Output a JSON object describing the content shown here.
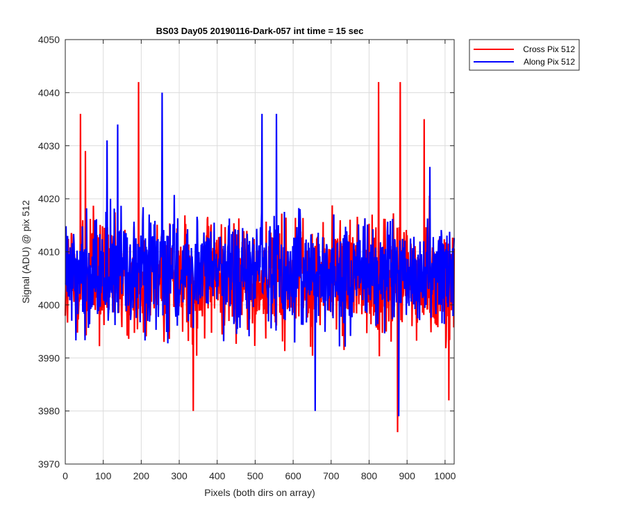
{
  "chart_data": {
    "type": "line",
    "title": "BS03 Day05 20190116-Dark-057 int time = 15 sec",
    "xlabel": "Pixels (both dirs on array)",
    "ylabel": "Signal (ADU) @ pix 512",
    "xlim": [
      0,
      1024
    ],
    "ylim": [
      3970,
      4050
    ],
    "xticks": [
      0,
      100,
      200,
      300,
      400,
      500,
      600,
      700,
      800,
      900,
      1000
    ],
    "yticks": [
      3970,
      3980,
      3990,
      4000,
      4010,
      4020,
      4030,
      4040,
      4050
    ],
    "grid": true,
    "legend_position": "outside-top-right",
    "series": [
      {
        "name": "Cross Pix 512",
        "color": "#ff0000",
        "baseline": 4005,
        "noise_range": [
          3990,
          4020
        ],
        "peaks": [
          {
            "x": 40,
            "y": 4036
          },
          {
            "x": 53,
            "y": 4029
          },
          {
            "x": 193,
            "y": 4042
          },
          {
            "x": 337,
            "y": 3980
          },
          {
            "x": 825,
            "y": 4042
          },
          {
            "x": 875,
            "y": 3976
          },
          {
            "x": 882,
            "y": 4042
          },
          {
            "x": 945,
            "y": 4035
          },
          {
            "x": 1010,
            "y": 3982
          }
        ]
      },
      {
        "name": "Along Pix 512",
        "color": "#0000ff",
        "baseline": 4006,
        "noise_range": [
          3992,
          4020
        ],
        "peaks": [
          {
            "x": 110,
            "y": 4031
          },
          {
            "x": 138,
            "y": 4034
          },
          {
            "x": 255,
            "y": 4040
          },
          {
            "x": 518,
            "y": 4036
          },
          {
            "x": 556,
            "y": 4036
          },
          {
            "x": 658,
            "y": 3980
          },
          {
            "x": 878,
            "y": 3979
          },
          {
            "x": 960,
            "y": 4026
          }
        ]
      }
    ]
  }
}
